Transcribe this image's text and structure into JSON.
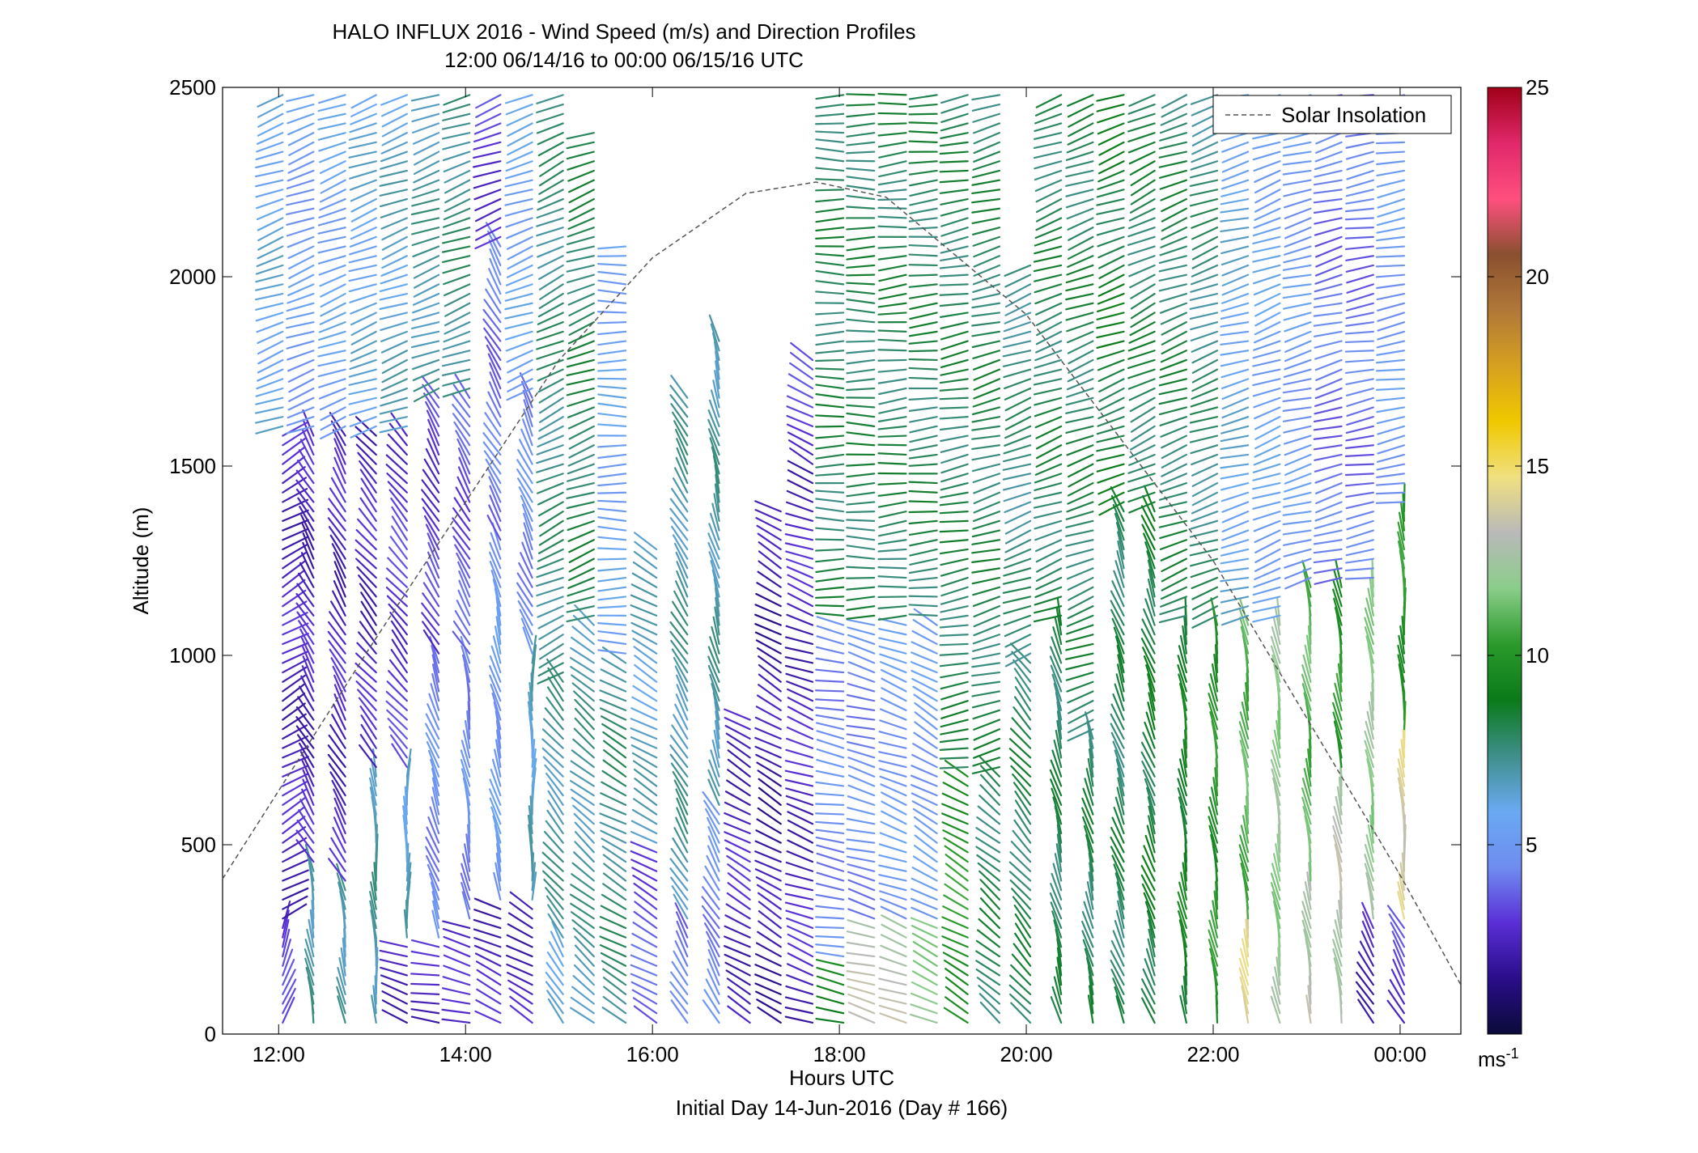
{
  "chart_data": {
    "type": "wind-barb profile (time-height)",
    "title": "HALO INFLUX 2016 - Wind Speed (m/s) and Direction Profiles",
    "subtitle": "12:00 06/14/16 to 00:00 06/15/16  UTC",
    "xlabel": "Hours UTC",
    "xlabel2": "Initial Day 14-Jun-2016 (Day # 166)",
    "ylabel": "Altitude (m)",
    "xlim_hours": [
      11.4,
      24.65
    ],
    "ylim": [
      0,
      2500
    ],
    "x_ticks": [
      {
        "value": 12,
        "label": "12:00"
      },
      {
        "value": 14,
        "label": "14:00"
      },
      {
        "value": 16,
        "label": "16:00"
      },
      {
        "value": 18,
        "label": "18:00"
      },
      {
        "value": 20,
        "label": "20:00"
      },
      {
        "value": 22,
        "label": "22:00"
      },
      {
        "value": 24,
        "label": "00:00"
      }
    ],
    "y_ticks": [
      0,
      500,
      1000,
      1500,
      2000,
      2500
    ],
    "legend": {
      "label": "Solar Insolation",
      "placement": "top-right",
      "style": "dashed gray"
    },
    "solar_insolation": {
      "peak_hour": 17.75,
      "peak_altitude_equiv": 2250,
      "values_at": [
        [
          11.4,
          410
        ],
        [
          13,
          1030
        ],
        [
          15,
          1780
        ],
        [
          16,
          2050
        ],
        [
          17,
          2220
        ],
        [
          17.75,
          2250
        ],
        [
          18.5,
          2210
        ],
        [
          20,
          1900
        ],
        [
          22,
          1250
        ],
        [
          24,
          420
        ],
        [
          24.65,
          130
        ]
      ]
    },
    "colorbar": {
      "range": [
        0,
        25
      ],
      "ticks": [
        5,
        10,
        15,
        20,
        25
      ],
      "unit": "ms-1",
      "colors": [
        "#0b0b3a",
        "#2a0d8a",
        "#5a2fd6",
        "#6f8df0",
        "#6aa9f2",
        "#3f8f8a",
        "#0a7a1a",
        "#2b9a2b",
        "#8acd8a",
        "#b9b9b9",
        "#f0e080",
        "#f0c800",
        "#d6a020",
        "#b07838",
        "#8a5030",
        "#ff4f7f",
        "#e0286a",
        "#a00018"
      ]
    },
    "profiles": [
      {
        "hour": 12.0,
        "top": 2480,
        "segments": [
          [
            0,
            300,
            3,
            20
          ],
          [
            300,
            1600,
            2.5,
            60
          ],
          [
            1600,
            2500,
            6,
            250
          ]
        ]
      },
      {
        "hour": 12.33,
        "top": 2480,
        "segments": [
          [
            0,
            450,
            7,
            350
          ],
          [
            450,
            1600,
            2.5,
            330
          ],
          [
            1600,
            2500,
            5,
            250
          ]
        ]
      },
      {
        "hour": 12.67,
        "top": 2480,
        "segments": [
          [
            0,
            400,
            7,
            350
          ],
          [
            400,
            1600,
            2.5,
            330
          ],
          [
            1600,
            2500,
            5.5,
            250
          ]
        ]
      },
      {
        "hour": 13.0,
        "top": 2480,
        "segments": [
          [
            0,
            700,
            7,
            355
          ],
          [
            700,
            1600,
            2.5,
            320
          ],
          [
            1600,
            2500,
            6,
            250
          ]
        ]
      },
      {
        "hour": 13.33,
        "top": 2480,
        "segments": [
          [
            0,
            250,
            2.5,
            290
          ],
          [
            250,
            700,
            6.5,
            0
          ],
          [
            700,
            1600,
            3,
            320
          ],
          [
            1600,
            2500,
            6.5,
            250
          ]
        ]
      },
      {
        "hour": 13.67,
        "top": 2480,
        "segments": [
          [
            0,
            250,
            2.5,
            280
          ],
          [
            250,
            1000,
            4.5,
            340
          ],
          [
            1000,
            1700,
            3,
            330
          ],
          [
            1700,
            2500,
            7,
            250
          ]
        ]
      },
      {
        "hour": 14.0,
        "top": 2480,
        "segments": [
          [
            0,
            300,
            2.5,
            285
          ],
          [
            300,
            1000,
            4.5,
            350
          ],
          [
            1000,
            1700,
            3.5,
            330
          ],
          [
            1700,
            2500,
            7.5,
            250
          ]
        ]
      },
      {
        "hour": 14.33,
        "top": 2480,
        "segments": [
          [
            0,
            350,
            2.5,
            295
          ],
          [
            350,
            1300,
            5,
            345
          ],
          [
            1300,
            2100,
            4,
            330
          ],
          [
            2100,
            2500,
            3,
            250
          ]
        ]
      },
      {
        "hour": 14.67,
        "top": 2480,
        "segments": [
          [
            0,
            350,
            2.5,
            300
          ],
          [
            350,
            1000,
            6.5,
            0
          ],
          [
            1000,
            1700,
            4.5,
            335
          ],
          [
            1700,
            2500,
            5.5,
            250
          ]
        ]
      },
      {
        "hour": 15.0,
        "top": 2480,
        "segments": [
          [
            0,
            250,
            6.5,
            330
          ],
          [
            250,
            950,
            7,
            320
          ],
          [
            950,
            2500,
            7.5,
            245
          ]
        ]
      },
      {
        "hour": 15.33,
        "top": 2400,
        "segments": [
          [
            0,
            1100,
            7,
            310
          ],
          [
            1100,
            2400,
            8,
            250
          ]
        ]
      },
      {
        "hour": 15.67,
        "top": 2090,
        "segments": [
          [
            0,
            1000,
            7.5,
            300
          ],
          [
            1000,
            2090,
            5.5,
            270
          ]
        ]
      },
      {
        "hour": 16.0,
        "top": 1300,
        "segments": [
          [
            0,
            500,
            3.5,
            300
          ],
          [
            500,
            1300,
            6.5,
            300
          ]
        ]
      },
      {
        "hour": 16.33,
        "top": 1700,
        "segments": [
          [
            0,
            300,
            4,
            330
          ],
          [
            300,
            1700,
            7,
            330
          ]
        ]
      },
      {
        "hour": 16.67,
        "top": 1830,
        "segments": [
          [
            0,
            600,
            4.5,
            330
          ],
          [
            600,
            1830,
            7,
            345
          ]
        ]
      },
      {
        "hour": 17.0,
        "top": 850,
        "segments": [
          [
            0,
            850,
            2.5,
            300
          ]
        ]
      },
      {
        "hour": 17.33,
        "top": 1400,
        "segments": [
          [
            0,
            1400,
            2,
            300
          ]
        ]
      },
      {
        "hour": 17.67,
        "top": 1800,
        "segments": [
          [
            0,
            1500,
            2.5,
            290
          ],
          [
            1500,
            1800,
            3,
            300
          ]
        ]
      },
      {
        "hour": 18.0,
        "top": 2480,
        "segments": [
          [
            0,
            200,
            9,
            280
          ],
          [
            200,
            1100,
            4.5,
            280
          ],
          [
            1100,
            2480,
            8,
            270
          ]
        ]
      },
      {
        "hour": 18.33,
        "top": 2480,
        "segments": [
          [
            0,
            300,
            13,
            285
          ],
          [
            300,
            1100,
            4.5,
            285
          ],
          [
            1100,
            2480,
            8,
            270
          ]
        ]
      },
      {
        "hour": 18.67,
        "top": 2480,
        "segments": [
          [
            0,
            300,
            13,
            290
          ],
          [
            300,
            1100,
            5,
            290
          ],
          [
            1100,
            2480,
            8,
            265
          ]
        ]
      },
      {
        "hour": 19.0,
        "top": 2480,
        "segments": [
          [
            0,
            300,
            12,
            295
          ],
          [
            300,
            1100,
            5,
            300
          ],
          [
            1100,
            2480,
            8,
            265
          ]
        ]
      },
      {
        "hour": 19.33,
        "top": 2480,
        "segments": [
          [
            0,
            700,
            10,
            300
          ],
          [
            700,
            2480,
            8,
            260
          ]
        ]
      },
      {
        "hour": 19.67,
        "top": 2480,
        "segments": [
          [
            0,
            700,
            8,
            310
          ],
          [
            700,
            2480,
            8,
            255
          ]
        ]
      },
      {
        "hour": 20.0,
        "top": 2050,
        "segments": [
          [
            0,
            1000,
            8,
            320
          ],
          [
            1000,
            2050,
            7.5,
            250
          ]
        ]
      },
      {
        "hour": 20.33,
        "top": 2480,
        "segments": [
          [
            0,
            1100,
            8,
            345
          ],
          [
            1100,
            2480,
            8,
            250
          ]
        ]
      },
      {
        "hour": 20.67,
        "top": 2480,
        "segments": [
          [
            0,
            800,
            8,
            345
          ],
          [
            800,
            2480,
            8,
            250
          ]
        ]
      },
      {
        "hour": 21.0,
        "top": 2480,
        "segments": [
          [
            0,
            1400,
            8,
            340
          ],
          [
            1400,
            2480,
            8.5,
            250
          ]
        ]
      },
      {
        "hour": 21.33,
        "top": 2480,
        "segments": [
          [
            0,
            1400,
            8.5,
            340
          ],
          [
            1400,
            2480,
            8,
            245
          ]
        ]
      },
      {
        "hour": 21.67,
        "top": 2480,
        "segments": [
          [
            0,
            1100,
            9,
            350
          ],
          [
            1100,
            2480,
            8,
            250
          ]
        ]
      },
      {
        "hour": 22.0,
        "top": 2480,
        "segments": [
          [
            0,
            1100,
            10,
            350
          ],
          [
            1100,
            2480,
            7.5,
            250
          ]
        ]
      },
      {
        "hour": 22.33,
        "top": 2480,
        "segments": [
          [
            0,
            300,
            14,
            350
          ],
          [
            300,
            1100,
            11,
            350
          ],
          [
            1100,
            2480,
            6,
            255
          ]
        ]
      },
      {
        "hour": 22.67,
        "top": 2480,
        "segments": [
          [
            0,
            1100,
            12,
            350
          ],
          [
            1100,
            2480,
            5.5,
            250
          ]
        ]
      },
      {
        "hour": 23.0,
        "top": 2480,
        "segments": [
          [
            0,
            400,
            13,
            350
          ],
          [
            400,
            1200,
            11,
            350
          ],
          [
            1200,
            2480,
            5,
            255
          ]
        ]
      },
      {
        "hour": 23.33,
        "top": 2480,
        "segments": [
          [
            0,
            700,
            13,
            350
          ],
          [
            700,
            1200,
            10,
            350
          ],
          [
            1200,
            2480,
            4,
            255
          ]
        ]
      },
      {
        "hour": 23.67,
        "top": 2480,
        "segments": [
          [
            0,
            300,
            2.5,
            330
          ],
          [
            300,
            1200,
            12,
            350
          ],
          [
            1200,
            2480,
            4,
            260
          ]
        ]
      },
      {
        "hour": 24.0,
        "top": 2480,
        "segments": [
          [
            0,
            300,
            3,
            330
          ],
          [
            300,
            800,
            14,
            355
          ],
          [
            800,
            1400,
            10,
            355
          ],
          [
            1400,
            2480,
            5,
            260
          ]
        ]
      }
    ]
  }
}
